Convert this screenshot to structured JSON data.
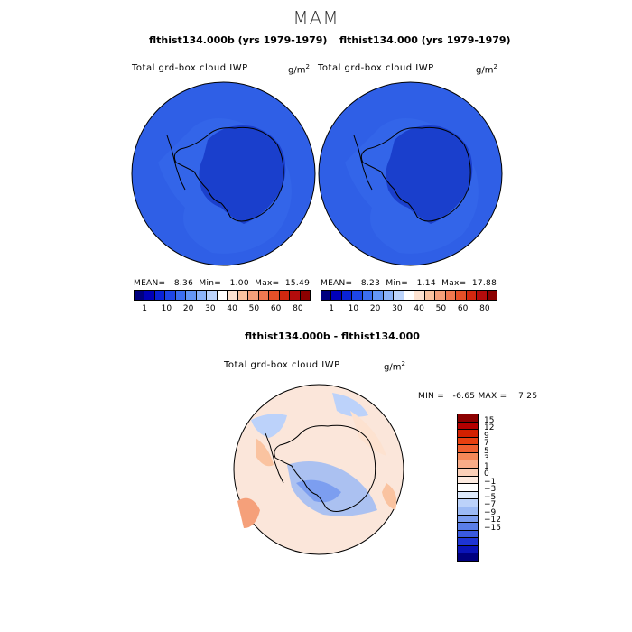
{
  "season": "MAM",
  "panel_left": {
    "case_title": "flthist134.000b (yrs 1979-1979)",
    "field": "Total grd-box cloud IWP",
    "unit": "g/m",
    "unit_exp": "2",
    "stats": "MEAN=   8.36  Min=   1.00  Max=  15.49"
  },
  "panel_right": {
    "case_title": "flthist134.000 (yrs 1979-1979)",
    "field": "Total grd-box cloud IWP",
    "unit": "g/m",
    "unit_exp": "2",
    "stats": "MEAN=   8.23  Min=   1.14  Max=  17.88"
  },
  "top_colorbar": {
    "colors": [
      "#00007f",
      "#0000b8",
      "#0a23d6",
      "#1e46e6",
      "#3c6ef0",
      "#6496f5",
      "#8cb4fa",
      "#bcd4fc",
      "#ffffff",
      "#fde2d0",
      "#fac3a0",
      "#f5a07a",
      "#f07850",
      "#e65028",
      "#d22810",
      "#b40c0c",
      "#8c0000"
    ],
    "tick_labels": [
      "1",
      "10",
      "20",
      "30",
      "40",
      "50",
      "60",
      "80"
    ]
  },
  "diff_panel": {
    "title": "flthist134.000b - flthist134.000",
    "field": "Total grd-box cloud IWP",
    "unit": "g/m",
    "unit_exp": "2",
    "min_max": "MIN =   -6.65 MAX =    7.25"
  },
  "diff_colorbar": {
    "colors": [
      "#8c0000",
      "#b40000",
      "#d22000",
      "#e84010",
      "#f06030",
      "#f58858",
      "#f8ac88",
      "#fbd0b8",
      "#fdebe0",
      "#ffffff",
      "#dce8fa",
      "#bcd2fa",
      "#9cbaf5",
      "#7c9ef0",
      "#5a7ee8",
      "#3a5ae0",
      "#1e34d4",
      "#0a14b8",
      "#00007f"
    ],
    "tick_labels": [
      "15",
      "12",
      "9",
      "7",
      "5",
      "3",
      "1",
      "0",
      "−1",
      "−3",
      "−5",
      "−7",
      "−9",
      "−12",
      "−15"
    ]
  },
  "maps": {
    "left_fill": "#2f5fe6",
    "left_inner": "#1a3fcc",
    "right_fill": "#2f5fe6",
    "right_inner": "#1a3fcc",
    "diff_fill": "#fbe6da"
  }
}
